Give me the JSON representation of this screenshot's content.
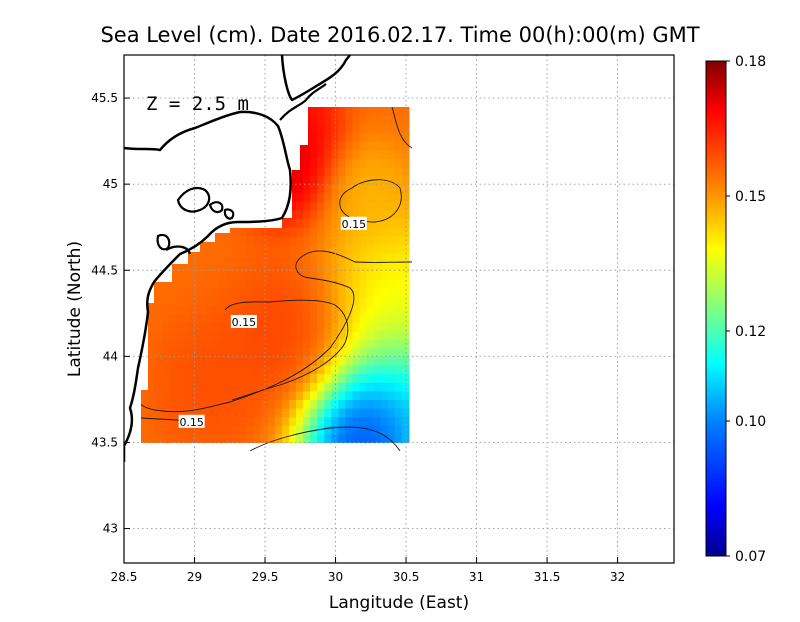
{
  "chart_data": {
    "type": "heatmap",
    "title": "Sea Level (cm). Date 2016.02.17. Time 00(h):00(m) GMT",
    "annotation": "Z = 2.5 m",
    "xlabel": "Langitude (East)",
    "ylabel": "Latitude (North)",
    "xlim": [
      28.5,
      32.4
    ],
    "ylim": [
      42.8,
      45.75
    ],
    "xticks": [
      28.5,
      29,
      29.5,
      30,
      30.5,
      31,
      31.5,
      32
    ],
    "xtick_labels": [
      "28.5",
      "29",
      "29.5",
      "30",
      "30.5",
      "31",
      "31.5",
      "32"
    ],
    "yticks": [
      43,
      43.5,
      44,
      44.5,
      45,
      45.5
    ],
    "ytick_labels": [
      "43",
      "43.5",
      "44",
      "44.5",
      "45",
      "45.5"
    ],
    "grid": true,
    "colorbar": {
      "min": 0.07,
      "max": 0.18,
      "tick_values": [
        0.07,
        0.1,
        0.12,
        0.15,
        0.18
      ],
      "tick_labels": [
        "0.07",
        "0.10",
        "0.12",
        "0.15",
        "0.18"
      ],
      "colors": [
        "#00008c",
        "#0000ff",
        "#0080ff",
        "#00ffff",
        "#80ff80",
        "#ffff00",
        "#ff8000",
        "#ff0000",
        "#800000"
      ]
    },
    "contour_label_values": [
      {
        "label": "0.15",
        "x": 30.13,
        "y": 44.77
      },
      {
        "label": "0.15",
        "x": 29.35,
        "y": 44.2
      },
      {
        "label": "0.15",
        "x": 28.98,
        "y": 43.62
      }
    ],
    "field_domain": {
      "lon": [
        28.62,
        30.52
      ],
      "lat": [
        43.5,
        45.48
      ]
    },
    "field_centers": [
      {
        "lon": 29.62,
        "lat": 45.1,
        "value": 0.178,
        "spread": 0.18
      },
      {
        "lon": 29.72,
        "lat": 45.35,
        "value": 0.172,
        "spread": 0.18
      },
      {
        "lon": 29.68,
        "lat": 44.1,
        "value": 0.162,
        "spread": 0.25
      },
      {
        "lon": 29.1,
        "lat": 43.85,
        "value": 0.16,
        "spread": 0.22
      },
      {
        "lon": 30.25,
        "lat": 44.95,
        "value": 0.145,
        "spread": 0.18
      },
      {
        "lon": 30.2,
        "lat": 43.52,
        "value": 0.07,
        "spread": 0.25
      },
      {
        "lon": 30.5,
        "lat": 43.75,
        "value": 0.1,
        "spread": 0.25
      },
      {
        "lon": 30.45,
        "lat": 44.3,
        "value": 0.132,
        "spread": 0.3
      }
    ],
    "field_base_value": 0.155
  }
}
